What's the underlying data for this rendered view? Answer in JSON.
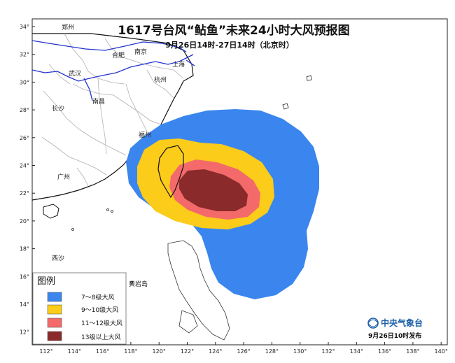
{
  "title": "1617号台风“鲇鱼”未来24小时大风预报图",
  "subtitle": "9月26日14时-27日14时（北京时）",
  "x_ticks": [
    "112°",
    "114°",
    "116°",
    "118°",
    "120°",
    "122°",
    "124°",
    "126°",
    "128°",
    "130°",
    "132°",
    "134°",
    "136°",
    "138°",
    "140°"
  ],
  "y_ticks": [
    "34°",
    "32°",
    "30°",
    "28°",
    "26°",
    "24°",
    "22°",
    "20°",
    "18°",
    "16°",
    "14°",
    "12°"
  ],
  "place_names": [
    "郑州",
    "合肥",
    "南京",
    "上海",
    "杭州",
    "武汉",
    "长沙",
    "南昌",
    "福州",
    "广州",
    "西沙",
    "黄岩岛"
  ],
  "legend": {
    "title": "图例",
    "items": [
      {
        "label": "7～8级大风",
        "color": "#3a86ee"
      },
      {
        "label": "9～10级大风",
        "color": "#fbcc19"
      },
      {
        "label": "11～12级大风",
        "color": "#f46a6a"
      },
      {
        "label": "13级以上大风",
        "color": "#8a2a2a"
      }
    ]
  },
  "publisher": "中央气象台",
  "publish_time": "9月26日10时发布",
  "colors": {
    "wind_7_8": "#3a86ee",
    "wind_9_10": "#fbcc19",
    "wind_11_12": "#f46a6a",
    "wind_13_plus": "#8a2a2a",
    "rivers": "#2233cc",
    "coast": "#111111",
    "provinces": "#b0b0b0"
  }
}
